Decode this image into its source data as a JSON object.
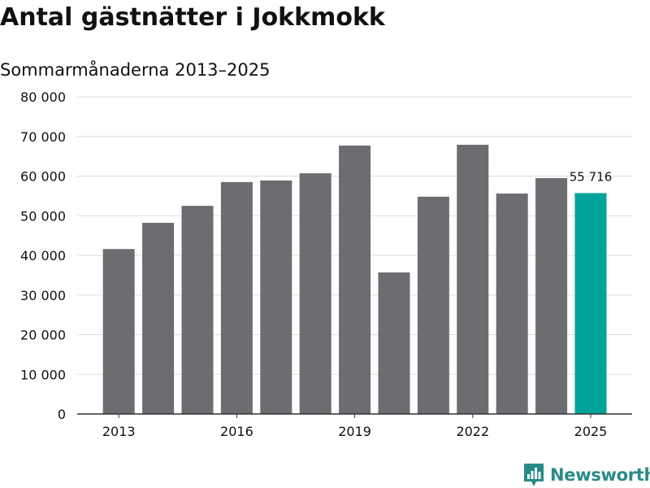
{
  "header": {
    "title": "Antal gästnätter i Jokkmokk",
    "subtitle": "Sommarmånaderna 2013–2025"
  },
  "brand": {
    "name": "Newsworthy",
    "icon": "newsworthy-logo-icon",
    "color": "#2a8a8a"
  },
  "colors": {
    "bar": "#6d6c71",
    "highlight": "#00a39a",
    "grid": "#dddddd",
    "axis": "#333333",
    "text": "#111111"
  },
  "chart_data": {
    "type": "bar",
    "title": "Antal gästnätter i Jokkmokk",
    "subtitle": "Sommarmånaderna 2013–2025",
    "categories": [
      "2013",
      "2014",
      "2015",
      "2016",
      "2017",
      "2018",
      "2019",
      "2020",
      "2021",
      "2022",
      "2023",
      "2024",
      "2025"
    ],
    "values": [
      41600,
      48200,
      52500,
      58500,
      58900,
      60700,
      67700,
      35700,
      54800,
      67900,
      55600,
      59500,
      55716
    ],
    "x_tick_labels": [
      "2013",
      "2016",
      "2019",
      "2022",
      "2025"
    ],
    "y_ticks": [
      0,
      10000,
      20000,
      30000,
      40000,
      50000,
      60000,
      70000,
      80000
    ],
    "y_tick_labels": [
      "0",
      "10 000",
      "20 000",
      "30 000",
      "40 000",
      "50 000",
      "60 000",
      "70 000",
      "80 000"
    ],
    "ylim": [
      0,
      80000
    ],
    "xlabel": "",
    "ylabel": "",
    "grid": true,
    "legend": "none",
    "highlight_index": 12,
    "data_label": {
      "index": 12,
      "text": "55 716"
    }
  }
}
